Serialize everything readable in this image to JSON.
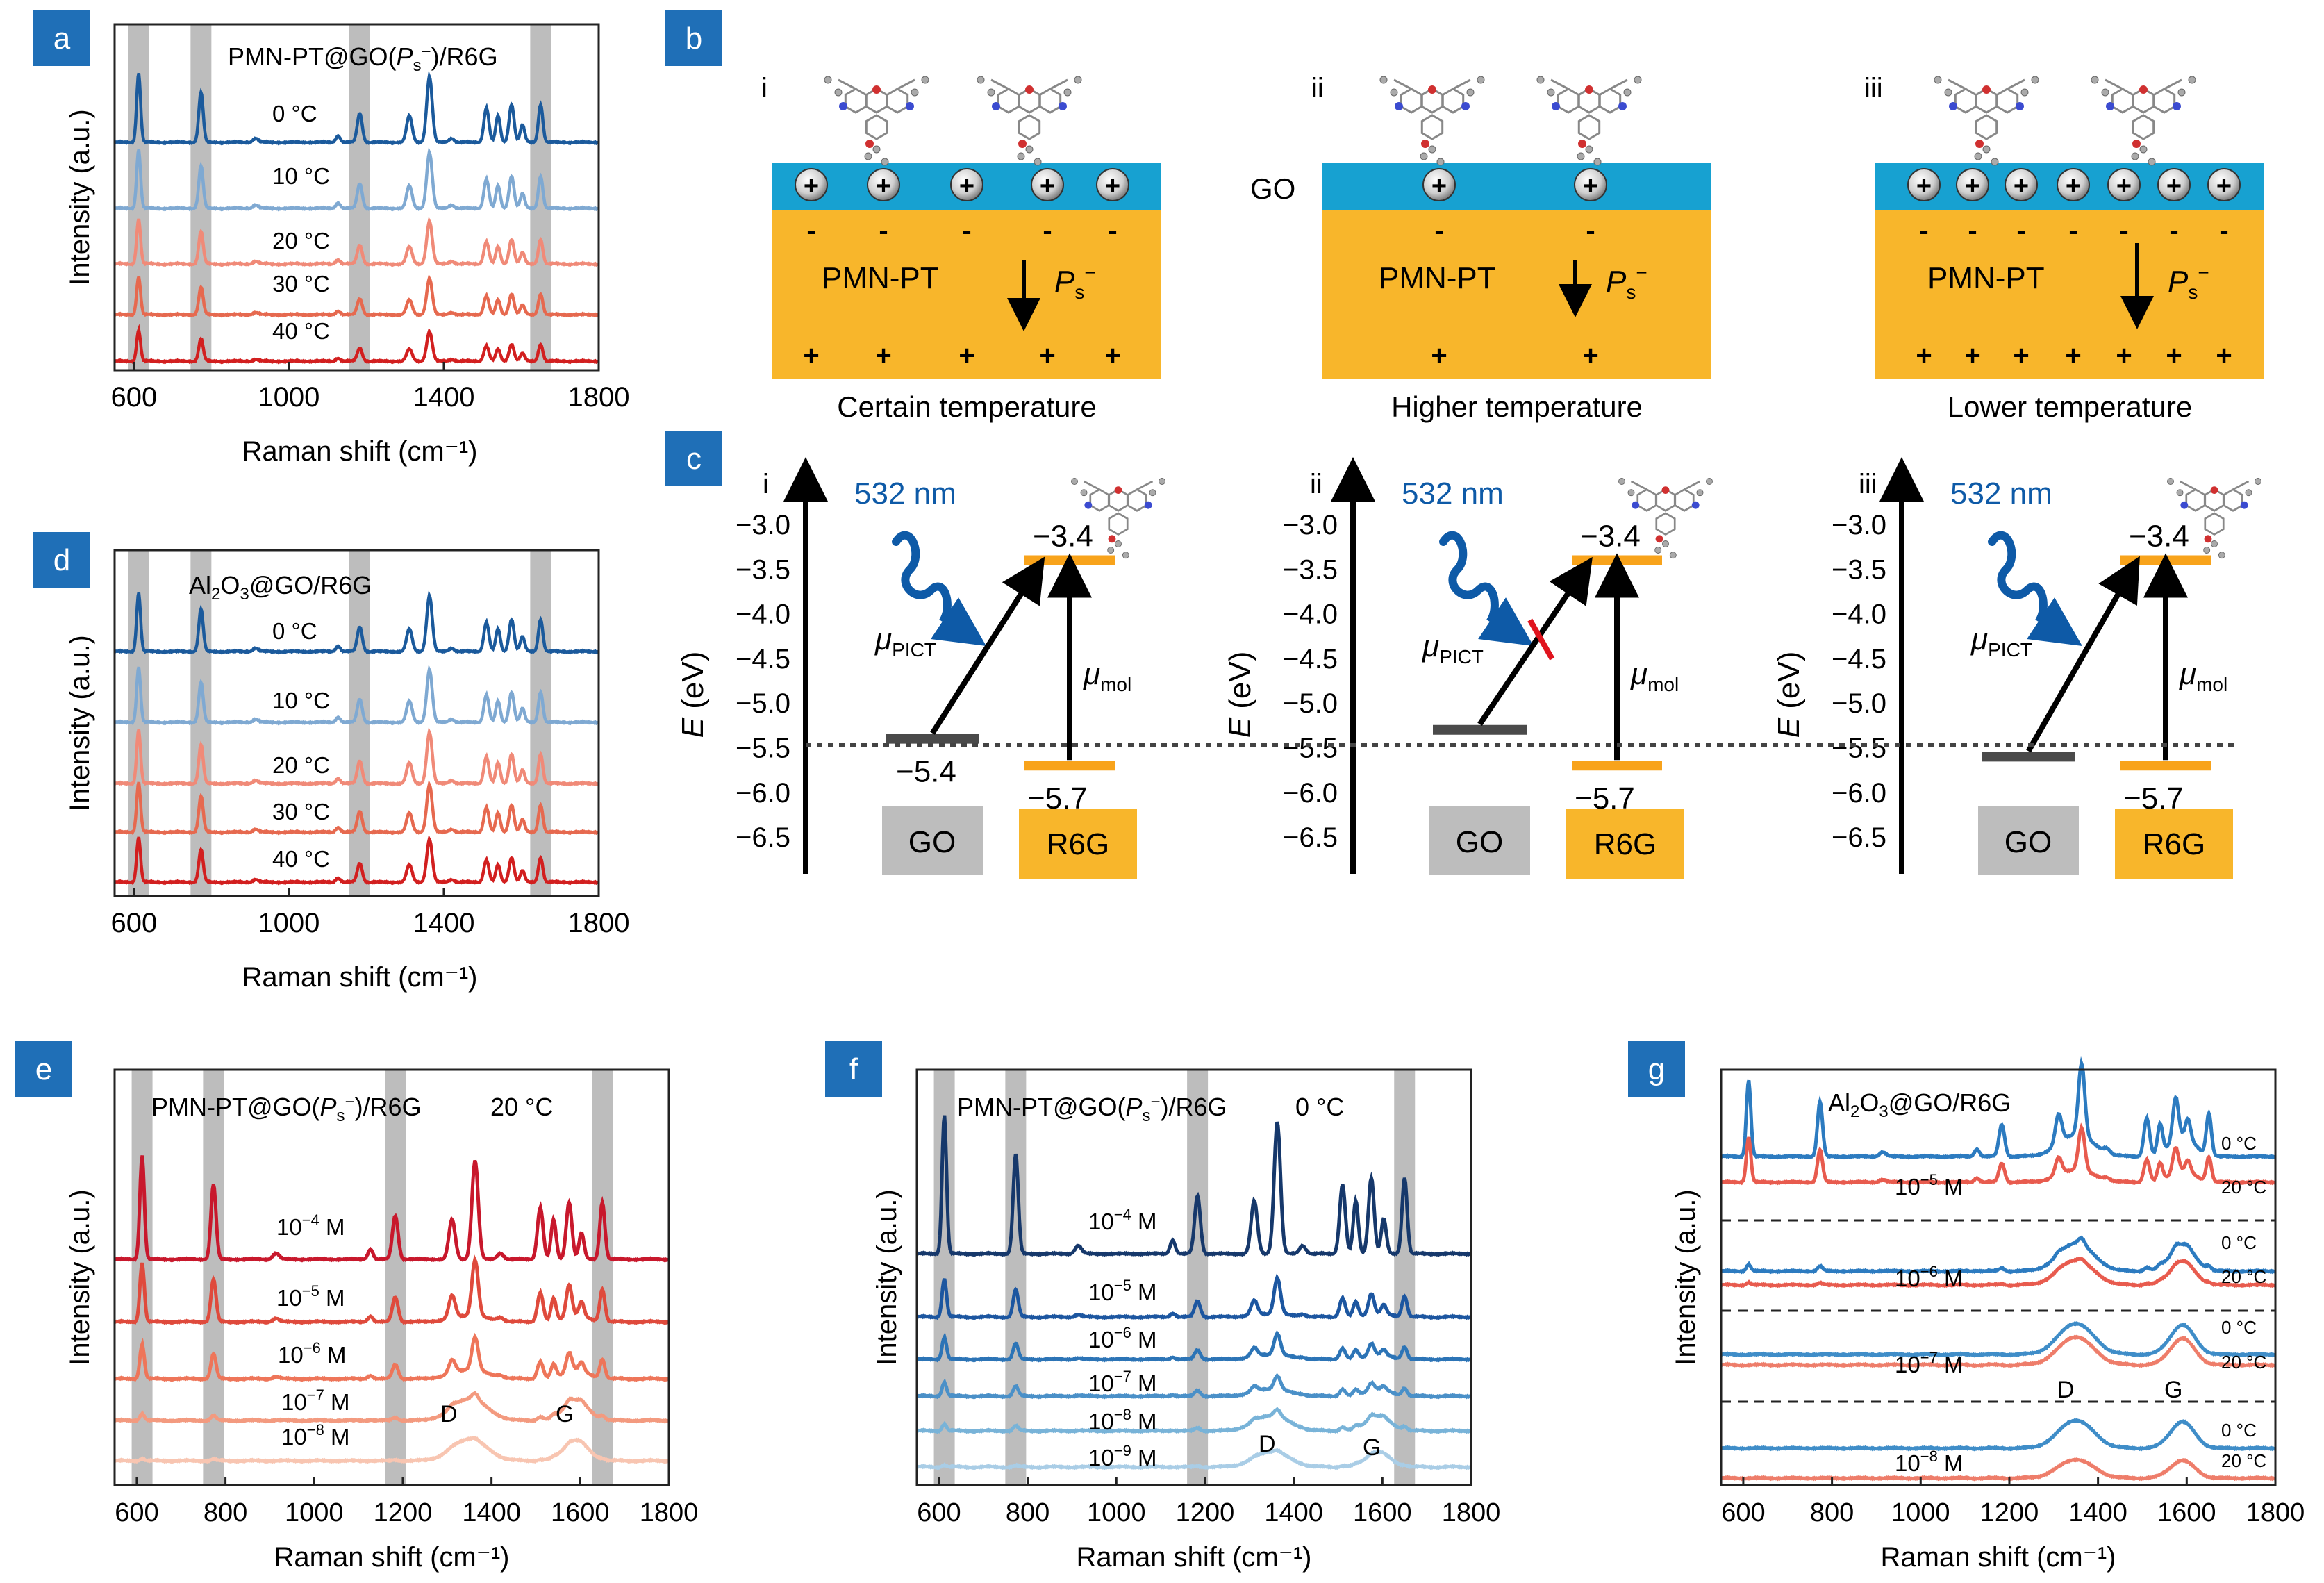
{
  "colors": {
    "panel_label_bg": "#1f6fb7",
    "layer_blue": "#17a1d1",
    "layer_orange": "#f8b62b",
    "go_gray": "#bdbdbd",
    "go_line": "#4a4a4a",
    "r6g_orange": "#f8a31b",
    "nm_blue": "#0e5aa7",
    "band_gray": "#bdbdbd",
    "t0": "#1b5a9c",
    "t10": "#7fa9d2",
    "t20": "#f08a78",
    "t30": "#e6694f",
    "t40": "#d21f1f",
    "cE": [
      "#c8182c",
      "#df4a3c",
      "#ee7559",
      "#f39a7f",
      "#f8c5b1"
    ],
    "cF": [
      "#16386b",
      "#1c56a0",
      "#2c74b6",
      "#4a90c8",
      "#78b3d8",
      "#a9cde6"
    ],
    "g0": "#2c7bc0",
    "g20": "#e85b4e",
    "g0b": "#3f8dc8",
    "g20b": "#ee7d6a"
  },
  "shared": {
    "raman_xlabel": "Raman shift (cm⁻¹)",
    "intensity_ylabel": "Intensity (a.u.)"
  },
  "panel_a": {
    "label": "a",
    "title_pre": "PMN-PT@GO(",
    "title_ital": "P",
    "title_sub": "s",
    "title_sup": "−",
    "title_post": ")/R6G",
    "temps": [
      "0 °C",
      "10 °C",
      "20 °C",
      "30 °C",
      "40 °C"
    ]
  },
  "panel_b": {
    "label": "b",
    "columns": [
      {
        "roman": "i",
        "substrate": "PMN-PT",
        "caption": "Certain temperature",
        "charges": 5,
        "molecules": 2
      },
      {
        "roman": "ii",
        "substrate": "PMN-PT",
        "caption": "Higher temperature",
        "charges": 2,
        "molecules": 2
      },
      {
        "roman": "iii",
        "substrate": "PMN-PT",
        "caption": "Lower temperature",
        "charges": 7,
        "molecules": 2
      }
    ],
    "go_label": "GO",
    "ps_ital": "P",
    "ps_sub": "s",
    "ps_sup": "−",
    "plus": "+",
    "minus": "-"
  },
  "panel_c": {
    "label": "c",
    "laser": "532 nm",
    "y_label_ital": "E",
    "y_label_rest": " (eV)",
    "y_ticks": [
      "−3.0",
      "−3.5",
      "−4.0",
      "−4.5",
      "−5.0",
      "−5.5",
      "−6.0",
      "−6.5"
    ],
    "y_tick_values": [
      -3.0,
      -3.5,
      -4.0,
      -4.5,
      -5.0,
      -5.5,
      -6.0,
      -6.5
    ],
    "lumo": "−3.4",
    "homo": "−5.7",
    "go_level_i": "−5.4",
    "go_levels_eV": [
      -5.4,
      -5.3,
      -5.6
    ],
    "lumo_eV": -3.4,
    "homo_eV": -5.7,
    "mu": "μ",
    "pict_sub": "PICT",
    "mol_sub": "mol",
    "go_box": "GO",
    "r6g_box": "R6G",
    "romans": [
      "i",
      "ii",
      "iii"
    ]
  },
  "panel_d": {
    "label": "d",
    "title_pre": "Al",
    "title_sub1": "2",
    "title_mid": "O",
    "title_sub2": "3",
    "title_post": "@GO/R6G",
    "temps": [
      "0 °C",
      "10 °C",
      "20 °C",
      "30 °C",
      "40 °C"
    ]
  },
  "panel_e": {
    "label": "e",
    "title_pre": "PMN-PT@GO(",
    "title_ital": "P",
    "title_sub": "s",
    "title_sup": "−",
    "title_post": ")/R6G",
    "temp": "20 °C",
    "conc_base": "10",
    "conc_exps": [
      "−4",
      "−5",
      "−6",
      "−7",
      "−8"
    ],
    "conc_unit": " M",
    "d_label": "D",
    "g_label": "G"
  },
  "panel_f": {
    "label": "f",
    "title_pre": "PMN-PT@GO(",
    "title_ital": "P",
    "title_sub": "s",
    "title_sup": "−",
    "title_post": ")/R6G",
    "temp": "0 °C",
    "conc_base": "10",
    "conc_exps": [
      "−4",
      "−5",
      "−6",
      "−7",
      "−8",
      "−9"
    ],
    "conc_unit": " M",
    "d_label": "D",
    "g_label": "G"
  },
  "panel_g": {
    "label": "g",
    "title_pre": "Al",
    "title_sub1": "2",
    "title_mid": "O",
    "title_sub2": "3",
    "title_post": "@GO/R6G",
    "temp0": "0 °C",
    "temp20": "20 °C",
    "conc_base": "10",
    "conc_exps": [
      "−5",
      "−6",
      "−7",
      "−8"
    ],
    "conc_unit": " M",
    "d_label": "D",
    "g_label": "G"
  },
  "chart_data": [
    {
      "panel": "a",
      "type": "line",
      "title": "PMN-PT@GO(Ps−)/R6G",
      "xlabel": "Raman shift (cm⁻¹)",
      "ylabel": "Intensity (a.u.)",
      "xlim": [
        550,
        1800
      ],
      "xticks": [
        600,
        1000,
        1400,
        1800
      ],
      "highlight_bands": [
        612,
        773,
        1183,
        1650
      ],
      "series": [
        {
          "name": "0 °C",
          "peak_scale": 1.0
        },
        {
          "name": "10 °C",
          "peak_scale": 0.85
        },
        {
          "name": "20 °C",
          "peak_scale": 0.65
        },
        {
          "name": "30 °C",
          "peak_scale": 0.55
        },
        {
          "name": "40 °C",
          "peak_scale": 0.45
        }
      ],
      "peaks_cm": [
        612,
        773,
        1183,
        1311,
        1363,
        1510,
        1575,
        1650
      ]
    },
    {
      "panel": "d",
      "type": "line",
      "title": "Al2O3@GO/R6G",
      "xlabel": "Raman shift (cm⁻¹)",
      "ylabel": "Intensity (a.u.)",
      "xlim": [
        550,
        1800
      ],
      "xticks": [
        600,
        1000,
        1400,
        1800
      ],
      "highlight_bands": [
        612,
        773,
        1183,
        1650
      ],
      "series": [
        {
          "name": "0 °C",
          "peak_scale": 1.0
        },
        {
          "name": "10 °C",
          "peak_scale": 1.0
        },
        {
          "name": "20 °C",
          "peak_scale": 1.0
        },
        {
          "name": "30 °C",
          "peak_scale": 1.0
        },
        {
          "name": "40 °C",
          "peak_scale": 1.0
        }
      ]
    },
    {
      "panel": "e",
      "type": "line",
      "title": "PMN-PT@GO(Ps−)/R6G 20 °C",
      "xlabel": "Raman shift (cm⁻¹)",
      "ylabel": "Intensity (a.u.)",
      "xlim": [
        550,
        1800
      ],
      "xticks": [
        600,
        800,
        1000,
        1200,
        1400,
        1600,
        1800
      ],
      "highlight_bands": [
        612,
        773,
        1183,
        1650
      ],
      "series": [
        {
          "name": "10−4 M",
          "peak_scale": 1.0
        },
        {
          "name": "10−5 M",
          "peak_scale": 0.55
        },
        {
          "name": "10−6 M",
          "peak_scale": 0.35
        },
        {
          "name": "10−7 M",
          "peak_scale": 0.12
        },
        {
          "name": "10−8 M",
          "peak_scale": 0.05
        }
      ],
      "bands_DG_cm": [
        1350,
        1590
      ]
    },
    {
      "panel": "f",
      "type": "line",
      "title": "PMN-PT@GO(Ps−)/R6G 0 °C",
      "xlabel": "Raman shift (cm⁻¹)",
      "ylabel": "Intensity (a.u.)",
      "xlim": [
        550,
        1800
      ],
      "xticks": [
        600,
        800,
        1000,
        1200,
        1400,
        1600,
        1800
      ],
      "highlight_bands": [
        612,
        773,
        1183,
        1650
      ],
      "series": [
        {
          "name": "10−4 M",
          "peak_scale": 1.0
        },
        {
          "name": "10−5 M",
          "peak_scale": 0.35
        },
        {
          "name": "10−6 M",
          "peak_scale": 0.22
        },
        {
          "name": "10−7 M",
          "peak_scale": 0.14
        },
        {
          "name": "10−8 M",
          "peak_scale": 0.08
        },
        {
          "name": "10−9 M",
          "peak_scale": 0.04
        }
      ],
      "bands_DG_cm": [
        1350,
        1590
      ]
    },
    {
      "panel": "g",
      "type": "line",
      "title": "Al2O3@GO/R6G",
      "xlabel": "Raman shift (cm⁻¹)",
      "ylabel": "Intensity (a.u.)",
      "xlim": [
        550,
        1800
      ],
      "xticks": [
        600,
        800,
        1000,
        1200,
        1400,
        1600,
        1800
      ],
      "series": [
        {
          "name": "10−5 M 0 °C",
          "peak_scale": 1.0
        },
        {
          "name": "10−5 M 20 °C",
          "peak_scale": 0.6
        },
        {
          "name": "10−6 M 0 °C",
          "peak_scale": 0.1
        },
        {
          "name": "10−6 M 20 °C",
          "peak_scale": 0.05
        },
        {
          "name": "10−7 M 0 °C",
          "peak_scale": 0
        },
        {
          "name": "10−7 M 20 °C",
          "peak_scale": 0
        },
        {
          "name": "10−8 M 0 °C",
          "peak_scale": 0
        },
        {
          "name": "10−8 M 20 °C",
          "peak_scale": 0
        }
      ],
      "bands_DG_cm": [
        1350,
        1590
      ]
    }
  ]
}
